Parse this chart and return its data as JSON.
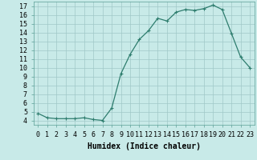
{
  "x": [
    0,
    1,
    2,
    3,
    4,
    5,
    6,
    7,
    8,
    9,
    10,
    11,
    12,
    13,
    14,
    15,
    16,
    17,
    18,
    19,
    20,
    21,
    22,
    23
  ],
  "y": [
    4.8,
    4.3,
    4.2,
    4.2,
    4.2,
    4.3,
    4.1,
    4.0,
    5.4,
    9.3,
    11.5,
    13.2,
    14.2,
    15.6,
    15.3,
    16.3,
    16.6,
    16.5,
    16.7,
    17.1,
    16.6,
    13.9,
    11.2,
    10.0
  ],
  "line_color": "#2e7d6e",
  "marker": "+",
  "marker_size": 3,
  "marker_lw": 0.8,
  "line_width": 0.9,
  "bg_color": "#c8eae8",
  "grid_color": "#a0c8c8",
  "xlabel": "Humidex (Indice chaleur)",
  "xlim": [
    -0.5,
    23.5
  ],
  "ylim": [
    3.5,
    17.5
  ],
  "xtick_labels": [
    "0",
    "1",
    "2",
    "3",
    "4",
    "5",
    "6",
    "7",
    "8",
    "9",
    "10",
    "11",
    "12",
    "13",
    "14",
    "15",
    "16",
    "17",
    "18",
    "19",
    "20",
    "21",
    "22",
    "23"
  ],
  "ytick_values": [
    4,
    5,
    6,
    7,
    8,
    9,
    10,
    11,
    12,
    13,
    14,
    15,
    16,
    17
  ],
  "xlabel_fontsize": 7,
  "tick_fontsize": 6
}
